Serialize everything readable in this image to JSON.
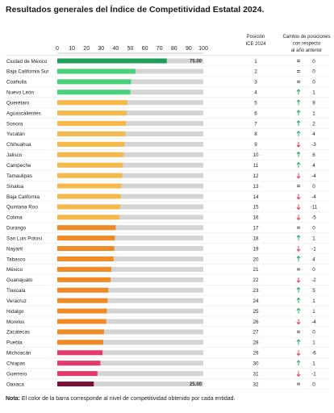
{
  "title": "Resultados generales del Índice de Competitividad Estatal 2024.",
  "note_label": "Nota:",
  "note_text": "El color de la barra corresponde al nivel de competitividad obtenido por cada entidad.",
  "chart_data": {
    "type": "bar",
    "orientation": "horizontal",
    "xlim": [
      0,
      100
    ],
    "x_ticks": [
      "0",
      "10",
      "20",
      "30",
      "40",
      "50",
      "60",
      "70",
      "80",
      "90",
      "100"
    ],
    "grid": false,
    "headers": {
      "position": "Posición ICE 2024",
      "change": "Cambio de posiciones con respecto al año anterior"
    },
    "colors": {
      "very_high": "#1f9e5a",
      "high": "#47d17a",
      "mid_high": "#f5b84a",
      "mid_low": "#f08a24",
      "low": "#e33a6e",
      "very_low": "#7d1038",
      "track": "#d4d4d4",
      "up": "#1aa05a",
      "down": "#d6304f"
    },
    "rows": [
      {
        "state": "Ciudad de México",
        "value": 75,
        "label": "75.00",
        "level": "very_high",
        "position": "1",
        "dir": "equal",
        "change": "0"
      },
      {
        "state": "Baja California Sur",
        "value": 53.5,
        "label": "",
        "level": "high",
        "position": "2",
        "dir": "equal",
        "change": "0"
      },
      {
        "state": "Coahuila",
        "value": 50.5,
        "label": "",
        "level": "high",
        "position": "3",
        "dir": "equal",
        "change": "0"
      },
      {
        "state": "Nuevo León",
        "value": 50,
        "label": "",
        "level": "high",
        "position": "4",
        "dir": "up",
        "change": "1"
      },
      {
        "state": "Querétaro",
        "value": 48,
        "label": "",
        "level": "mid_high",
        "position": "5",
        "dir": "up",
        "change": "9"
      },
      {
        "state": "Aguascalientes",
        "value": 47.5,
        "label": "",
        "level": "mid_high",
        "position": "6",
        "dir": "up",
        "change": "1"
      },
      {
        "state": "Sonora",
        "value": 47,
        "label": "",
        "level": "mid_high",
        "position": "7",
        "dir": "up",
        "change": "2"
      },
      {
        "state": "Yucatán",
        "value": 46.5,
        "label": "",
        "level": "mid_high",
        "position": "8",
        "dir": "up",
        "change": "4"
      },
      {
        "state": "Chihuahua",
        "value": 46,
        "label": "",
        "level": "mid_high",
        "position": "9",
        "dir": "down",
        "change": "-3"
      },
      {
        "state": "Jalisco",
        "value": 45.5,
        "label": "",
        "level": "mid_high",
        "position": "10",
        "dir": "up",
        "change": "6"
      },
      {
        "state": "Campeche",
        "value": 45,
        "label": "",
        "level": "mid_high",
        "position": "11",
        "dir": "up",
        "change": "4"
      },
      {
        "state": "Tamaulipas",
        "value": 44.5,
        "label": "",
        "level": "mid_high",
        "position": "12",
        "dir": "down",
        "change": "-4"
      },
      {
        "state": "Sinaloa",
        "value": 44,
        "label": "",
        "level": "mid_high",
        "position": "13",
        "dir": "equal",
        "change": "0"
      },
      {
        "state": "Baja California",
        "value": 43.5,
        "label": "",
        "level": "mid_high",
        "position": "14",
        "dir": "down",
        "change": "-4"
      },
      {
        "state": "Quintana Roo",
        "value": 43,
        "label": "",
        "level": "mid_high",
        "position": "15",
        "dir": "down",
        "change": "-11"
      },
      {
        "state": "Colima",
        "value": 42.5,
        "label": "",
        "level": "mid_high",
        "position": "16",
        "dir": "down",
        "change": "-5"
      },
      {
        "state": "Durango",
        "value": 40,
        "label": "",
        "level": "mid_low",
        "position": "17",
        "dir": "equal",
        "change": "0"
      },
      {
        "state": "San Luis Potosí",
        "value": 39.5,
        "label": "",
        "level": "mid_low",
        "position": "18",
        "dir": "up",
        "change": "1"
      },
      {
        "state": "Nayarit",
        "value": 39,
        "label": "",
        "level": "mid_low",
        "position": "19",
        "dir": "down",
        "change": "-1"
      },
      {
        "state": "Tabasco",
        "value": 38.5,
        "label": "",
        "level": "mid_low",
        "position": "20",
        "dir": "up",
        "change": "4"
      },
      {
        "state": "México",
        "value": 37,
        "label": "",
        "level": "mid_low",
        "position": "21",
        "dir": "equal",
        "change": "0"
      },
      {
        "state": "Guanajuato",
        "value": 36.5,
        "label": "",
        "level": "mid_low",
        "position": "22",
        "dir": "down",
        "change": "-2"
      },
      {
        "state": "Tlaxcala",
        "value": 35,
        "label": "",
        "level": "mid_low",
        "position": "23",
        "dir": "up",
        "change": "5"
      },
      {
        "state": "Veracruz",
        "value": 34.5,
        "label": "",
        "level": "mid_low",
        "position": "24",
        "dir": "up",
        "change": "1"
      },
      {
        "state": "Hidalgo",
        "value": 34,
        "label": "",
        "level": "mid_low",
        "position": "25",
        "dir": "up",
        "change": "1"
      },
      {
        "state": "Morelos",
        "value": 33.5,
        "label": "",
        "level": "mid_low",
        "position": "26",
        "dir": "down",
        "change": "-4"
      },
      {
        "state": "Zacatecas",
        "value": 32,
        "label": "",
        "level": "mid_low",
        "position": "27",
        "dir": "equal",
        "change": "0"
      },
      {
        "state": "Puebla",
        "value": 31.5,
        "label": "",
        "level": "mid_low",
        "position": "28",
        "dir": "up",
        "change": "1"
      },
      {
        "state": "Michoacán",
        "value": 31,
        "label": "",
        "level": "low",
        "position": "29",
        "dir": "down",
        "change": "-6"
      },
      {
        "state": "Chiapas",
        "value": 29.5,
        "label": "",
        "level": "low",
        "position": "30",
        "dir": "up",
        "change": "1"
      },
      {
        "state": "Guerrero",
        "value": 27.5,
        "label": "",
        "level": "low",
        "position": "31",
        "dir": "down",
        "change": "-1"
      },
      {
        "state": "Oaxaca",
        "value": 25,
        "label": "25.00",
        "level": "very_low",
        "position": "32",
        "dir": "equal",
        "change": "0"
      }
    ]
  }
}
